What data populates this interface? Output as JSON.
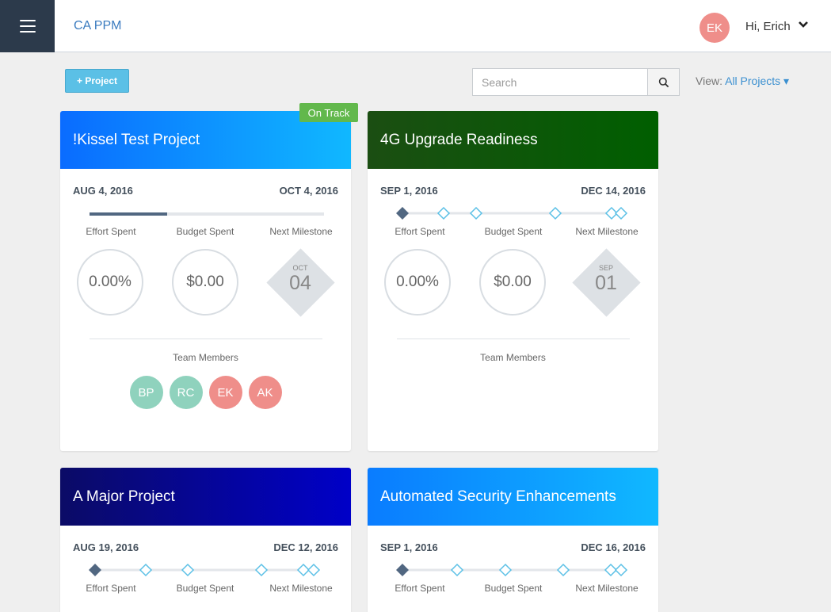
{
  "header": {
    "app_title": "CA PPM",
    "user_initials": "EK",
    "greeting": "Hi, Erich",
    "menu_icon": "hamburger-icon",
    "chevron_icon": "chevron-down-icon"
  },
  "toolbar": {
    "add_project_label": "+ Project",
    "search_placeholder": "Search",
    "view_label": "View:",
    "view_value": "All Projects ▾"
  },
  "labels": {
    "effort_spent": "Effort Spent",
    "budget_spent": "Budget Spent",
    "next_milestone": "Next Milestone",
    "team_members": "Team Members"
  },
  "colors": {
    "menu_bg": "#2c3a4b",
    "accent": "#3a8fd0",
    "on_track": "#62b84c",
    "teal_avatar": "#8fd2bd",
    "pink_avatar": "#ef8e8a"
  },
  "projects": [
    {
      "name": "!Kissel Test Project",
      "status": "On Track",
      "start_date": "AUG 4, 2016",
      "end_date": "OCT 4, 2016",
      "timeline_progress": 0.33,
      "effort_spent": "0.00%",
      "budget_spent": "$0.00",
      "milestone_month": "OCT",
      "milestone_day": "04",
      "team": [
        "BP",
        "RC",
        "EK",
        "AK"
      ]
    },
    {
      "name": "4G Upgrade Readiness",
      "status": "",
      "start_date": "SEP 1, 2016",
      "end_date": "DEC 14, 2016",
      "effort_spent": "0.00%",
      "budget_spent": "$0.00",
      "milestone_month": "SEP",
      "milestone_day": "01",
      "team": []
    },
    {
      "name": "A Major Project",
      "start_date": "AUG 19, 2016",
      "end_date": "DEC 12, 2016"
    },
    {
      "name": "Automated Security Enhancements",
      "start_date": "SEP 1, 2016",
      "end_date": "DEC 16, 2016"
    }
  ]
}
